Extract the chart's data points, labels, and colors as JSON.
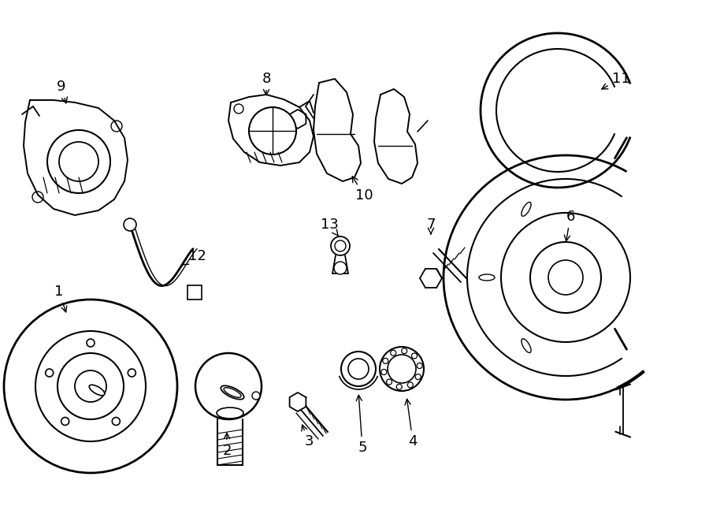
{
  "background": "#ffffff",
  "line_color": "#000000",
  "lw": 1.4,
  "fig_width": 9.0,
  "fig_height": 6.61,
  "dpi": 100,
  "xmax": 900,
  "ymax": 661
}
